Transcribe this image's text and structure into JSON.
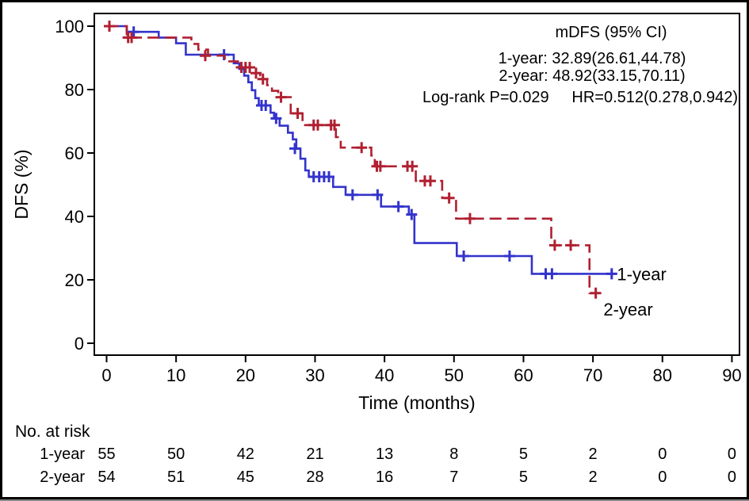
{
  "figure": {
    "background": "#ffffff",
    "border_color": "#000000"
  },
  "chart_data": {
    "type": "line",
    "subtype": "kaplan_meier_step",
    "title": "",
    "xlabel": "Time (months)",
    "ylabel": "DFS (%)",
    "xlim": [
      0,
      92
    ],
    "ylim": [
      0,
      100
    ],
    "x_ticks": [
      0,
      10,
      20,
      30,
      40,
      50,
      60,
      70,
      80,
      90
    ],
    "y_ticks": [
      0,
      20,
      40,
      60,
      80,
      100
    ],
    "grid": false,
    "legend_position": "curve-end-labels",
    "annotations": {
      "header": "mDFS (95% CI)",
      "one_year": "1-year: 32.89(26.61,44.78)",
      "two_year": "2-year: 48.92(33.15,70.11)",
      "logrank": "Log-rank P=0.029",
      "hazard_ratio": "HR=0.512(0.278,0.942)"
    },
    "series": [
      {
        "name": "1-year",
        "label": "1-year",
        "color": "#3333CC",
        "line_style": "solid",
        "end_time": 73.0,
        "points": [
          [
            0,
            100
          ],
          [
            2.9,
            98.2
          ],
          [
            7.5,
            96.4
          ],
          [
            10.0,
            94.6
          ],
          [
            11.4,
            91.0
          ],
          [
            18.3,
            88.3
          ],
          [
            19.1,
            86.5
          ],
          [
            19.8,
            84.4
          ],
          [
            20.4,
            82.3
          ],
          [
            20.9,
            79.8
          ],
          [
            21.4,
            77.3
          ],
          [
            21.9,
            75.0
          ],
          [
            23.6,
            72.7
          ],
          [
            24.1,
            70.9
          ],
          [
            24.9,
            68.6
          ],
          [
            26.1,
            66.4
          ],
          [
            26.8,
            64.3
          ],
          [
            27.3,
            61.4
          ],
          [
            27.9,
            58.2
          ],
          [
            28.6,
            54.5
          ],
          [
            29.1,
            52.5
          ],
          [
            32.6,
            49.3
          ],
          [
            34.4,
            46.8
          ],
          [
            39.5,
            43.1
          ],
          [
            43.5,
            40.6
          ],
          [
            44.3,
            31.6
          ],
          [
            50.4,
            27.5
          ],
          [
            61.2,
            21.9
          ]
        ],
        "censors": [
          [
            0.4,
            100
          ],
          [
            3.9,
            98.2
          ],
          [
            16.9,
            91.0
          ],
          [
            22.3,
            75.0
          ],
          [
            22.9,
            75.0
          ],
          [
            24.4,
            70.9
          ],
          [
            27.1,
            61.4
          ],
          [
            29.8,
            52.5
          ],
          [
            30.6,
            52.5
          ],
          [
            31.3,
            52.5
          ],
          [
            32.0,
            52.5
          ],
          [
            35.4,
            46.8
          ],
          [
            39.0,
            46.8
          ],
          [
            42.0,
            43.1
          ],
          [
            43.9,
            40.6
          ],
          [
            51.4,
            27.5
          ],
          [
            58.0,
            27.5
          ],
          [
            63.2,
            21.9
          ],
          [
            64.1,
            21.9
          ],
          [
            72.7,
            21.9
          ]
        ]
      },
      {
        "name": "2-year",
        "label": "2-year",
        "color": "#B02030",
        "line_style": "dashed",
        "end_time": 70.6,
        "points": [
          [
            0,
            100
          ],
          [
            2.9,
            96.4
          ],
          [
            12.2,
            94.4
          ],
          [
            13.2,
            92.6
          ],
          [
            14.6,
            90.7
          ],
          [
            17.0,
            88.9
          ],
          [
            18.9,
            87.0
          ],
          [
            21.0,
            85.2
          ],
          [
            22.1,
            83.3
          ],
          [
            23.1,
            81.4
          ],
          [
            23.8,
            79.6
          ],
          [
            24.7,
            77.6
          ],
          [
            26.5,
            72.5
          ],
          [
            28.2,
            68.8
          ],
          [
            33.0,
            65.0
          ],
          [
            33.7,
            61.7
          ],
          [
            38.1,
            59.2
          ],
          [
            38.6,
            55.8
          ],
          [
            44.5,
            51.2
          ],
          [
            48.3,
            45.8
          ],
          [
            50.3,
            39.3
          ],
          [
            64.0,
            30.9
          ],
          [
            69.5,
            15.8
          ]
        ],
        "censors": [
          [
            0.4,
            100
          ],
          [
            3.1,
            96.4
          ],
          [
            3.6,
            96.4
          ],
          [
            14.2,
            90.7
          ],
          [
            19.4,
            87.0
          ],
          [
            20.0,
            87.0
          ],
          [
            20.6,
            87.0
          ],
          [
            21.5,
            85.2
          ],
          [
            22.5,
            83.3
          ],
          [
            25.1,
            77.6
          ],
          [
            27.5,
            72.5
          ],
          [
            29.8,
            68.8
          ],
          [
            30.4,
            68.8
          ],
          [
            32.3,
            68.8
          ],
          [
            32.8,
            68.8
          ],
          [
            36.7,
            61.7
          ],
          [
            38.9,
            55.8
          ],
          [
            39.4,
            55.8
          ],
          [
            43.3,
            55.8
          ],
          [
            44.0,
            55.8
          ],
          [
            45.8,
            51.2
          ],
          [
            46.6,
            51.2
          ],
          [
            49.3,
            45.8
          ],
          [
            52.3,
            39.3
          ],
          [
            64.5,
            30.9
          ],
          [
            66.8,
            30.9
          ],
          [
            70.4,
            15.8
          ]
        ]
      }
    ],
    "risk_table": {
      "title": "No. at risk",
      "times": [
        0,
        10,
        20,
        30,
        40,
        50,
        60,
        70,
        80,
        90
      ],
      "rows": [
        {
          "label": "1-year",
          "counts": [
            55,
            50,
            42,
            21,
            13,
            8,
            5,
            2,
            0,
            0
          ]
        },
        {
          "label": "2-year",
          "counts": [
            54,
            51,
            45,
            28,
            16,
            7,
            5,
            2,
            0,
            0
          ]
        }
      ]
    }
  }
}
